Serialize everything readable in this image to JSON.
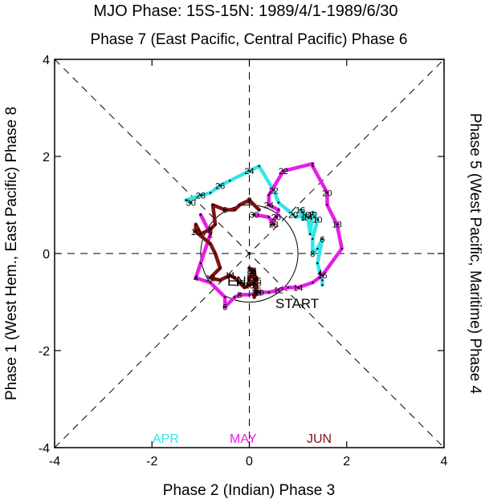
{
  "title": "MJO Phase: 15S-15N: 1989/4/1-1989/6/30",
  "top_label": "Phase 7 (East Pacific, Central Pacific) Phase 6",
  "bottom_label": "Phase 2 (Indian) Phase 3",
  "left_label": "Phase 1 (West Hem., East Pacific) Phase 8",
  "right_label": "Phase 5 (West Pacific, Maritime) Phase 4",
  "start_label": "START",
  "end_label": "END",
  "colors": {
    "APR": "#33e6e6",
    "MAY": "#e61ee6",
    "JUN": "#801010",
    "axes": "#000000"
  },
  "chart_data": {
    "type": "line",
    "xlim": [
      -4,
      4
    ],
    "ylim": [
      -4,
      4
    ],
    "xticks": [
      "-4",
      "-2",
      "0",
      "2",
      "4"
    ],
    "yticks": [
      "-4",
      "-2",
      "0",
      "2",
      "4"
    ],
    "legend": [
      {
        "name": "APR",
        "color": "#33e6e6"
      },
      {
        "name": "MAY",
        "color": "#e61ee6"
      },
      {
        "name": "JUN",
        "color": "#801010"
      }
    ],
    "series": [
      {
        "name": "APR",
        "color": "#33e6e6",
        "points": [
          {
            "x": 1.5,
            "y": -0.65,
            "label": ""
          },
          {
            "x": 1.5,
            "y": -0.55,
            "label": ""
          },
          {
            "x": 1.45,
            "y": -0.4,
            "label": "4"
          },
          {
            "x": 1.4,
            "y": -0.2,
            "label": ""
          },
          {
            "x": 1.5,
            "y": 0.3,
            "label": "6"
          },
          {
            "x": 1.4,
            "y": 0.1,
            "label": ""
          },
          {
            "x": 1.3,
            "y": 0.0,
            "label": "8"
          },
          {
            "x": 1.3,
            "y": 0.3,
            "label": ""
          },
          {
            "x": 1.4,
            "y": 0.7,
            "label": "10"
          },
          {
            "x": 1.3,
            "y": 0.85,
            "label": ""
          },
          {
            "x": 1.3,
            "y": 0.8,
            "label": "12"
          },
          {
            "x": 1.25,
            "y": 0.4,
            "label": ""
          },
          {
            "x": 1.2,
            "y": 0.75,
            "label": "14"
          },
          {
            "x": 1.1,
            "y": 0.85,
            "label": ""
          },
          {
            "x": 1.05,
            "y": 0.9,
            "label": "16"
          },
          {
            "x": 1.1,
            "y": 0.7,
            "label": ""
          },
          {
            "x": 1.15,
            "y": 0.8,
            "label": "18"
          },
          {
            "x": 0.95,
            "y": 0.75,
            "label": ""
          },
          {
            "x": 0.9,
            "y": 0.8,
            "label": "20"
          },
          {
            "x": 0.6,
            "y": 1.05,
            "label": ""
          },
          {
            "x": 0.5,
            "y": 1.3,
            "label": "22"
          },
          {
            "x": 0.2,
            "y": 1.8,
            "label": ""
          },
          {
            "x": 0.0,
            "y": 1.7,
            "label": "24"
          },
          {
            "x": -0.4,
            "y": 1.5,
            "label": ""
          },
          {
            "x": -0.6,
            "y": 1.4,
            "label": "26"
          },
          {
            "x": -0.8,
            "y": 1.25,
            "label": ""
          },
          {
            "x": -1.0,
            "y": 1.2,
            "label": "28"
          },
          {
            "x": -1.3,
            "y": 1.1,
            "label": ""
          },
          {
            "x": -1.2,
            "y": 1.05,
            "label": "30"
          }
        ]
      },
      {
        "name": "MAY",
        "color": "#e61ee6",
        "points": [
          {
            "x": -1.0,
            "y": 0.8,
            "label": ""
          },
          {
            "x": -0.8,
            "y": 0.4,
            "label": "2"
          },
          {
            "x": -1.0,
            "y": -0.2,
            "label": ""
          },
          {
            "x": -1.1,
            "y": -0.5,
            "label": "4"
          },
          {
            "x": -0.8,
            "y": -0.6,
            "label": ""
          },
          {
            "x": -0.5,
            "y": -0.9,
            "label": ""
          },
          {
            "x": -0.5,
            "y": -1.1,
            "label": "6"
          },
          {
            "x": -0.3,
            "y": -0.9,
            "label": ""
          },
          {
            "x": -0.2,
            "y": -0.85,
            "label": "8"
          },
          {
            "x": 0.0,
            "y": -0.85,
            "label": ""
          },
          {
            "x": 0.2,
            "y": -0.8,
            "label": "10"
          },
          {
            "x": 0.4,
            "y": -0.8,
            "label": ""
          },
          {
            "x": 0.6,
            "y": -0.75,
            "label": "12"
          },
          {
            "x": 0.8,
            "y": -0.7,
            "label": ""
          },
          {
            "x": 1.0,
            "y": -0.7,
            "label": "14"
          },
          {
            "x": 1.3,
            "y": -0.6,
            "label": ""
          },
          {
            "x": 1.5,
            "y": -0.45,
            "label": "16"
          },
          {
            "x": 1.9,
            "y": 0.1,
            "label": ""
          },
          {
            "x": 1.8,
            "y": 0.6,
            "label": "18"
          },
          {
            "x": 1.6,
            "y": 1.0,
            "label": ""
          },
          {
            "x": 1.6,
            "y": 1.25,
            "label": "20"
          },
          {
            "x": 1.3,
            "y": 1.8,
            "label": ""
          },
          {
            "x": 1.3,
            "y": 1.85,
            "label": ""
          },
          {
            "x": 0.7,
            "y": 1.7,
            "label": "22"
          },
          {
            "x": 0.4,
            "y": 1.2,
            "label": ""
          },
          {
            "x": 0.4,
            "y": 1.0,
            "label": "24"
          },
          {
            "x": 0.6,
            "y": 0.9,
            "label": ""
          },
          {
            "x": 0.55,
            "y": 0.75,
            "label": "26"
          },
          {
            "x": 0.45,
            "y": 0.6,
            "label": ""
          },
          {
            "x": 0.5,
            "y": 0.6,
            "label": "28"
          },
          {
            "x": 0.4,
            "y": 0.75,
            "label": ""
          },
          {
            "x": 0.1,
            "y": 0.8,
            "label": "30"
          }
        ]
      },
      {
        "name": "JUN",
        "color": "#801010",
        "points": [
          {
            "x": 0.2,
            "y": 0.9,
            "label": ""
          },
          {
            "x": 0.0,
            "y": 1.1,
            "label": "2"
          },
          {
            "x": -0.2,
            "y": 1.0,
            "label": ""
          },
          {
            "x": -0.3,
            "y": 0.9,
            "label": ""
          },
          {
            "x": -0.5,
            "y": 0.9,
            "label": "6"
          },
          {
            "x": -0.75,
            "y": 1.0,
            "label": ""
          },
          {
            "x": -0.7,
            "y": 0.6,
            "label": ""
          },
          {
            "x": -0.8,
            "y": 0.5,
            "label": "8"
          },
          {
            "x": -1.0,
            "y": 0.4,
            "label": ""
          },
          {
            "x": -1.1,
            "y": 0.6,
            "label": ""
          },
          {
            "x": -1.1,
            "y": 0.45,
            "label": "10"
          },
          {
            "x": -0.8,
            "y": 0.2,
            "label": ""
          },
          {
            "x": -0.7,
            "y": 0.0,
            "label": ""
          },
          {
            "x": -0.6,
            "y": -0.3,
            "label": ""
          },
          {
            "x": -0.8,
            "y": -0.5,
            "label": "12"
          },
          {
            "x": -0.6,
            "y": -0.55,
            "label": ""
          },
          {
            "x": -0.4,
            "y": -0.45,
            "label": "14"
          },
          {
            "x": -0.3,
            "y": -0.5,
            "label": ""
          },
          {
            "x": -0.2,
            "y": -0.6,
            "label": "16"
          },
          {
            "x": -0.1,
            "y": -0.7,
            "label": ""
          },
          {
            "x": 0.0,
            "y": -0.65,
            "label": "18"
          },
          {
            "x": 0.1,
            "y": -0.6,
            "label": ""
          },
          {
            "x": 0.15,
            "y": -0.8,
            "label": "20"
          },
          {
            "x": 0.1,
            "y": -0.9,
            "label": ""
          },
          {
            "x": 0.15,
            "y": -0.65,
            "label": "22"
          },
          {
            "x": 0.0,
            "y": -0.55,
            "label": ""
          },
          {
            "x": 0.05,
            "y": -0.4,
            "label": "24"
          },
          {
            "x": 0.15,
            "y": -0.5,
            "label": ""
          },
          {
            "x": 0.15,
            "y": -0.55,
            "label": "26"
          },
          {
            "x": 0.1,
            "y": -0.65,
            "label": ""
          },
          {
            "x": 0.1,
            "y": -0.45,
            "label": ""
          },
          {
            "x": 0.05,
            "y": -0.35,
            "label": "28"
          },
          {
            "x": 0.0,
            "y": -0.3,
            "label": ""
          },
          {
            "x": 0.1,
            "y": -0.35,
            "label": ""
          },
          {
            "x": 0.15,
            "y": -0.8,
            "label": "30"
          }
        ]
      }
    ]
  }
}
